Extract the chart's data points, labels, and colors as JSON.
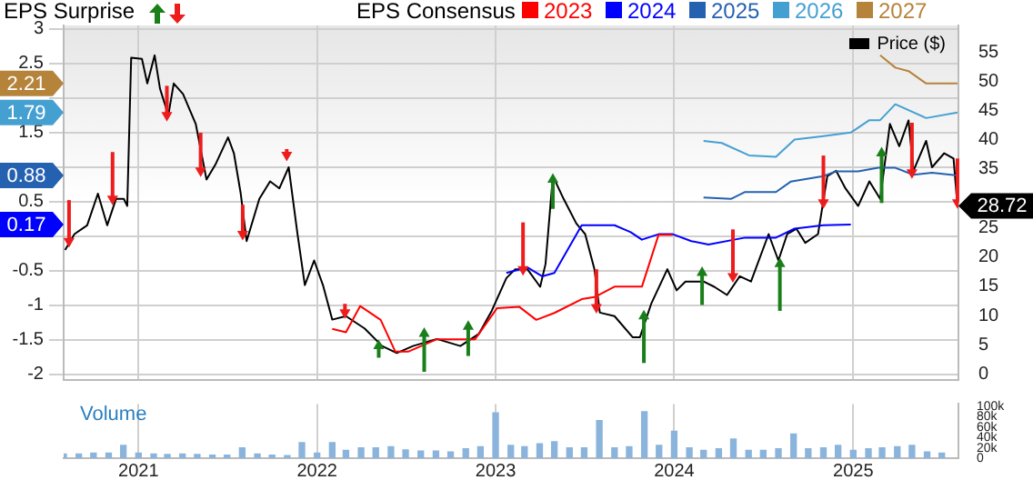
{
  "chart_data": [
    {
      "type": "line",
      "legend_title": "EPS Consensus",
      "annotations": [
        "EPS Surprise",
        "2.21",
        "1.79",
        "0.88",
        "0.17"
      ],
      "legend": "top right",
      "grid": true,
      "marker": "none",
      "tick_labels": "y",
      "xlim": [
        "2020-08-01",
        "2025-08-04"
      ],
      "xticks": [
        {
          "value": "2021-01-01",
          "label": null
        },
        {
          "value": "2022-01-01",
          "label": null
        },
        {
          "value": "2023-01-01",
          "label": null
        },
        {
          "value": "2024-01-01",
          "label": null
        },
        {
          "value": "2025-01-01",
          "label": null
        }
      ],
      "ylim": [
        -2.08,
        3.05
      ],
      "yticks": [
        -2,
        -1.5,
        -1,
        -0.5,
        {
          "value": 0,
          "label": null
        },
        0.5,
        {
          "value": 1,
          "label": null
        },
        1.5,
        {
          "value": 2,
          "label": null
        },
        2.5,
        3
      ],
      "y2lim": [
        -1,
        59.5
      ],
      "y2ticks": [
        0,
        5,
        10,
        15,
        20,
        25,
        35,
        40,
        45,
        50,
        55
      ],
      "series": [
        {
          "name": "2023",
          "color": "#ff0000",
          "x": [
            "2022-02-01",
            "2022-03-01",
            "2022-03-30",
            "2022-05-11",
            "2022-06-10",
            "2022-07-06",
            "2022-09-03",
            "2022-11-20",
            "2023-01-04",
            "2023-02-18",
            "2023-03-25",
            "2023-05-01",
            "2023-06-26",
            "2023-07-22",
            "2023-09-01",
            "2023-10-27",
            "2023-11-30",
            "2023-12-29"
          ],
          "values": [
            -1.34,
            -1.39,
            -1.01,
            -1.21,
            -1.67,
            -1.67,
            -1.49,
            -1.49,
            -1.04,
            -1.02,
            -1.21,
            -1.11,
            -0.91,
            -0.88,
            -0.73,
            -0.73,
            0.02,
            0.02
          ]
        },
        {
          "name": "2024",
          "color": "#0000ff",
          "x": [
            "2023-01-23",
            "2023-03-07",
            "2023-04-06",
            "2023-05-01",
            "2023-06-26",
            "2023-07-22",
            "2023-09-01",
            "2023-10-04",
            "2023-10-27",
            "2023-11-30",
            "2023-12-29",
            "2024-02-05",
            "2024-03-11",
            "2024-05-25",
            "2024-07-27",
            "2024-09-03",
            "2024-11-01",
            "2024-12-27"
          ],
          "values": [
            -0.53,
            -0.45,
            -0.58,
            -0.53,
            0.16,
            0.16,
            0.16,
            0.06,
            -0.05,
            0.03,
            0.03,
            -0.07,
            -0.12,
            -0.02,
            -0.02,
            0.11,
            0.16,
            0.17
          ]
        },
        {
          "name": "2025",
          "color": "#2461b0",
          "x": [
            "2024-03-01",
            "2024-04-26",
            "2024-05-25",
            "2024-07-27",
            "2024-08-26",
            "2024-11-01",
            "2024-11-27",
            "2025-01-11",
            "2025-02-21",
            "2025-03-28",
            "2025-05-04",
            "2025-06-11",
            "2025-08-02"
          ],
          "values": [
            0.56,
            0.54,
            0.64,
            0.64,
            0.79,
            0.87,
            0.94,
            0.94,
            0.99,
            0.99,
            0.89,
            0.92,
            0.88
          ]
        },
        {
          "name": "2026",
          "color": "#45a0d2",
          "x": [
            "2024-03-01",
            "2024-04-07",
            "2024-06-02",
            "2024-07-27",
            "2024-09-03",
            "2024-11-01",
            "2024-12-27",
            "2025-02-03",
            "2025-02-25",
            "2025-03-28",
            "2025-05-30",
            "2025-08-02"
          ],
          "values": [
            1.38,
            1.35,
            1.17,
            1.15,
            1.4,
            1.45,
            1.5,
            1.68,
            1.68,
            1.91,
            1.71,
            1.79
          ]
        },
        {
          "name": "2027",
          "color": "#b5833a",
          "x": [
            "2025-02-25",
            "2025-03-28",
            "2025-04-24",
            "2025-05-30",
            "2025-08-02"
          ],
          "values": [
            2.62,
            2.44,
            2.39,
            2.21,
            2.21
          ]
        },
        {
          "name": "Price ($)",
          "color": "#000000",
          "axis": "y2",
          "x": [
            "2020-08-04",
            "2020-08-23",
            "2020-09-18",
            "2020-10-10",
            "2020-10-29",
            "2020-11-16",
            "2020-12-02",
            "2020-12-09",
            "2020-12-17",
            "2021-01-08",
            "2021-01-19",
            "2021-02-03",
            "2021-02-14",
            "2021-03-03",
            "2021-03-14",
            "2021-04-02",
            "2021-04-28",
            "2021-05-20",
            "2021-06-08",
            "2021-07-03",
            "2021-07-15",
            "2021-07-29",
            "2021-08-10",
            "2021-09-05",
            "2021-09-27",
            "2021-10-16",
            "2021-11-04",
            "2021-11-22",
            "2021-12-07",
            "2021-12-26",
            "2022-01-13",
            "2022-02-01",
            "2022-03-01",
            "2022-04-08",
            "2022-05-14",
            "2022-06-13",
            "2022-07-16",
            "2022-09-03",
            "2022-10-21",
            "2022-11-28",
            "2022-12-24",
            "2023-01-23",
            "2023-02-10",
            "2023-03-07",
            "2023-04-02",
            "2023-04-13",
            "2023-04-28",
            "2023-05-20",
            "2023-06-15",
            "2023-07-03",
            "2023-07-22",
            "2023-08-02",
            "2023-09-01",
            "2023-10-08",
            "2023-10-23",
            "2023-11-15",
            "2023-12-18",
            "2024-01-06",
            "2024-01-24",
            "2024-03-01",
            "2024-03-23",
            "2024-04-18",
            "2024-05-14",
            "2024-06-06",
            "2024-07-12",
            "2024-08-01",
            "2024-08-19",
            "2024-09-07",
            "2024-09-25",
            "2024-10-21",
            "2024-11-09",
            "2024-11-27",
            "2024-12-16",
            "2025-01-11",
            "2025-02-03",
            "2025-02-25",
            "2025-03-17",
            "2025-04-05",
            "2025-04-24",
            "2025-05-04",
            "2025-05-30",
            "2025-06-11",
            "2025-07-06",
            "2025-07-25",
            "2025-08-02"
          ],
          "values": [
            21.2,
            23.9,
            25.4,
            30.8,
            25.4,
            29.9,
            29.9,
            28.7,
            54,
            53.8,
            49.6,
            54.4,
            48.7,
            44.2,
            49.6,
            47.8,
            42.7,
            33.2,
            35.9,
            40.4,
            37.7,
            30.8,
            22.7,
            29.9,
            32.9,
            31.7,
            35.3,
            23.9,
            15.2,
            19.4,
            15.2,
            9.3,
            9.9,
            7.8,
            4.8,
            3.6,
            4.8,
            6,
            4.8,
            6.9,
            10.8,
            16.4,
            17.9,
            17.9,
            14.9,
            18.8,
            33.8,
            29.9,
            25.7,
            23.9,
            17.9,
            10.5,
            9.9,
            6.3,
            6.3,
            12,
            17.9,
            14.3,
            15.8,
            15.8,
            14.9,
            13.5,
            16.7,
            15.8,
            23.9,
            19.4,
            23.9,
            24.8,
            22.4,
            23.9,
            33.8,
            34.7,
            31.7,
            28.7,
            32.9,
            29.9,
            42.7,
            38.9,
            43.3,
            34.7,
            39.8,
            35.3,
            37.7,
            36.8,
            28.72
          ],
          "value_labels": [
            null,
            null,
            null,
            null,
            null,
            null,
            null,
            null,
            null,
            null,
            null,
            null,
            null,
            null,
            null,
            null,
            null,
            null,
            null,
            null,
            null,
            null,
            null,
            null,
            null,
            null,
            null,
            null,
            null,
            null,
            null,
            null,
            null,
            null,
            null,
            null,
            null,
            null,
            null,
            null,
            null,
            null,
            null,
            null,
            null,
            null,
            null,
            null,
            null,
            null,
            null,
            null,
            null,
            null,
            null,
            null,
            null,
            null,
            null,
            null,
            null,
            null,
            null,
            null,
            null,
            null,
            null,
            null,
            null,
            null,
            null,
            null,
            null,
            null,
            null,
            null,
            null,
            null,
            null,
            null,
            null,
            null,
            null,
            null,
            "28.72"
          ]
        },
        {
          "type": "scatter",
          "color": "#1a7f1a",
          "axis": "y2",
          "marker": "triangle",
          "x": [
            "2022-05-07",
            "2022-08-08",
            "2022-11-06",
            "2023-04-28",
            "2023-10-31",
            "2024-02-27",
            "2024-08-04",
            "2025-02-28"
          ],
          "values": [
            4.8,
            6.9,
            8.1,
            33.2,
            9.9,
            17.3,
            18.8,
            37.7
          ],
          "errors": [
            [
              2.8,
              4.8
            ],
            [
              0.4,
              6.9
            ],
            [
              3.1,
              8.1
            ],
            [
              28.2,
              33.2
            ],
            [
              1.9,
              9.9
            ],
            [
              11.8,
              17.3
            ],
            [
              10.8,
              18.8
            ],
            [
              29.2,
              37.7
            ]
          ]
        },
        {
          "type": "scatter",
          "color": "#ee1c1c",
          "axis": "y2",
          "marker": "triangle",
          "x": [
            "2020-08-12",
            "2020-11-09",
            "2021-02-28",
            "2021-05-08",
            "2021-08-02",
            "2021-10-31",
            "2022-02-27",
            "2023-02-26",
            "2023-07-26",
            "2024-04-30",
            "2024-11-01",
            "2025-05-01",
            "2025-08-02"
          ],
          "values": [
            22.7,
            29.9,
            44.2,
            34.7,
            23.9,
            37.4,
            10.5,
            17.9,
            11.4,
            16.7,
            29.3,
            34.4,
            29.3
          ],
          "errors": [
            [
              22.7,
              29.7
            ],
            [
              29.9,
              37.9
            ],
            [
              44.2,
              49.2
            ],
            [
              34.7,
              41.2
            ],
            [
              23.9,
              28.9
            ],
            [
              37.4,
              38.4
            ],
            [
              10.5,
              12
            ],
            [
              17.9,
              25.9
            ],
            [
              11.4,
              17.9
            ],
            [
              16.7,
              24.7
            ],
            [
              29.3,
              37.3
            ],
            [
              34.4,
              42.9
            ],
            [
              29.3,
              36.8
            ]
          ]
        }
      ]
    },
    {
      "type": "bar",
      "annotations": [
        "Volume"
      ],
      "grid": "x",
      "color": "#8ab4dc",
      "x": [
        "2020-08",
        "2020-09",
        "2020-10",
        "2020-11",
        "2020-12",
        "2021-01",
        "2021-02",
        "2021-03",
        "2021-04",
        "2021-05",
        "2021-06",
        "2021-07",
        "2021-08",
        "2021-09",
        "2021-10",
        "2021-11",
        "2021-12",
        "2022-01",
        "2022-02",
        "2022-03",
        "2022-04",
        "2022-05",
        "2022-06",
        "2022-07",
        "2022-08",
        "2022-09",
        "2022-10",
        "2022-11",
        "2022-12",
        "2023-01",
        "2023-02",
        "2023-03",
        "2023-04",
        "2023-05",
        "2023-06",
        "2023-07",
        "2023-08",
        "2023-09",
        "2023-10",
        "2023-11",
        "2023-12",
        "2024-01",
        "2024-02",
        "2024-03",
        "2024-04",
        "2024-05",
        "2024-06",
        "2024-07",
        "2024-08",
        "2024-09",
        "2024-10",
        "2024-11",
        "2024-12",
        "2025-01",
        "2025-02",
        "2025-03",
        "2025-04",
        "2025-05",
        "2025-06",
        "2025-07"
      ],
      "values": [
        8000,
        8000,
        10000,
        10000,
        25000,
        10000,
        8000,
        7000,
        8000,
        7000,
        6000,
        6000,
        20000,
        8000,
        6000,
        5000,
        30000,
        10000,
        30000,
        15000,
        20000,
        20000,
        22000,
        16000,
        14000,
        14000,
        12000,
        18000,
        22000,
        88000,
        25000,
        22000,
        28000,
        32000,
        20000,
        20000,
        73000,
        20000,
        22000,
        90000,
        25000,
        52000,
        20000,
        15000,
        18000,
        37000,
        15000,
        15000,
        18000,
        47000,
        18000,
        20000,
        25000,
        15000,
        18000,
        20000,
        22000,
        25000,
        12000,
        10000
      ],
      "xlim": [
        "2020-08-01",
        "2025-08-04"
      ],
      "xticks": [
        {
          "value": "2021-01-01",
          "label": "2021"
        },
        {
          "value": "2022-01-01",
          "label": "2022"
        },
        {
          "value": "2023-01-01",
          "label": "2023"
        },
        {
          "value": "2024-01-01",
          "label": "2024"
        },
        {
          "value": "2025-01-01",
          "label": "2025"
        }
      ],
      "ylim": [
        0,
        105000
      ],
      "yticks": [
        0,
        {
          "value": 20000,
          "label": "20k"
        },
        {
          "value": 40000,
          "label": "40k"
        },
        {
          "value": 60000,
          "label": "60k"
        },
        {
          "value": 80000,
          "label": "80k"
        },
        {
          "value": 100000,
          "label": "100k"
        }
      ]
    }
  ]
}
